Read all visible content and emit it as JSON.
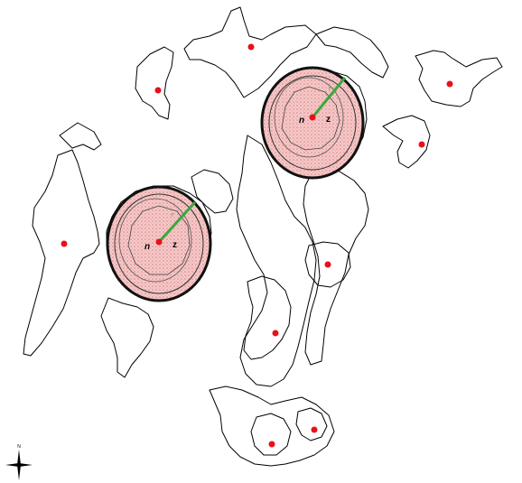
{
  "colors": {
    "outline": "#000000",
    "centroid": "#e8101a",
    "buffer_fill": "#f2b8b8",
    "buffer_stroke": "#111111",
    "radius_line": "#3aa83a",
    "background": "#ffffff"
  },
  "buffers": [
    {
      "centroid_label": "n",
      "zone_label": "z",
      "radius_label": "r"
    },
    {
      "centroid_label": "n",
      "zone_label": "z",
      "radius_label": "r"
    }
  ],
  "compass": {
    "north_label": "N",
    "icon": "north-arrow-icon"
  }
}
